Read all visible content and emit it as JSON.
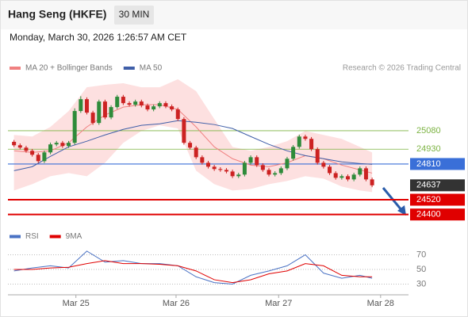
{
  "chart_data": {
    "type": "candlestick",
    "title": "Hang Seng (HKFE)",
    "interval": "30 MIN",
    "subtitle": "Monday, March 30, 2026 1:26:57 AM CET",
    "source": "Research © 2026 Trading Central",
    "xlim": [
      -1,
      65
    ],
    "xticks": [
      {
        "value": 10.2,
        "label": "Mar 25"
      },
      {
        "value": 26.7,
        "label": "Mar 26"
      },
      {
        "value": 43.6,
        "label": "Mar 27"
      },
      {
        "value": 60.4,
        "label": "Mar 28"
      }
    ],
    "ylim": [
      24340,
      25530
    ],
    "up_color": "#2e8b3a",
    "down_color": "#cc2222",
    "open": [
      24990,
      24962,
      24943,
      24917,
      24885,
      24833,
      24904,
      24969,
      24982,
      24956,
      24982,
      25240,
      25336,
      25227,
      25143,
      25317,
      25188,
      25272,
      25356,
      25304,
      25291,
      25317,
      25285,
      25253,
      25278,
      25304,
      25278,
      25253,
      25175,
      24982,
      24943,
      24865,
      24820,
      24788,
      24769,
      24762,
      24749,
      24711,
      24724,
      24820,
      24865,
      24801,
      24762,
      24724,
      24736,
      24775,
      24853,
      24949,
      25033,
      25014,
      24930,
      24820,
      24788,
      24736,
      24698,
      24711,
      24685,
      24724,
      24775,
      24685
    ],
    "high": [
      25005,
      24977,
      24958,
      24932,
      24900,
      24919,
      24984,
      24997,
      24997,
      24997,
      25262,
      25360,
      25351,
      25242,
      25332,
      25332,
      25287,
      25371,
      25371,
      25319,
      25332,
      25332,
      25300,
      25293,
      25319,
      25319,
      25293,
      25268,
      25190,
      24997,
      24958,
      24880,
      24835,
      24803,
      24784,
      24777,
      24764,
      24739,
      24835,
      24880,
      24880,
      24816,
      24777,
      24751,
      24790,
      24868,
      24964,
      25048,
      25048,
      25029,
      24945,
      24835,
      24803,
      24751,
      24726,
      24726,
      24739,
      24790,
      24790,
      24700
    ],
    "low": [
      24947,
      24928,
      24902,
      24870,
      24818,
      24818,
      24889,
      24954,
      24941,
      24941,
      24967,
      25225,
      25212,
      25128,
      25128,
      25173,
      25173,
      25257,
      25289,
      25276,
      25276,
      25270,
      25238,
      25238,
      25263,
      25263,
      25238,
      25160,
      24967,
      24928,
      24850,
      24805,
      24773,
      24754,
      24747,
      24734,
      24696,
      24696,
      24709,
      24805,
      24786,
      24747,
      24709,
      24709,
      24721,
      24760,
      24838,
      24934,
      24999,
      24915,
      24805,
      24773,
      24721,
      24683,
      24683,
      24670,
      24670,
      24709,
      24670,
      24622
    ],
    "close": [
      24962,
      24943,
      24917,
      24885,
      24833,
      24904,
      24969,
      24982,
      24956,
      24982,
      25240,
      25336,
      25227,
      25143,
      25317,
      25188,
      25272,
      25356,
      25304,
      25291,
      25317,
      25285,
      25253,
      25278,
      25304,
      25278,
      25253,
      25175,
      24982,
      24943,
      24865,
      24820,
      24788,
      24769,
      24762,
      24749,
      24711,
      24724,
      24820,
      24865,
      24801,
      24762,
      24724,
      24736,
      24775,
      24853,
      24949,
      25033,
      25014,
      24930,
      24820,
      24788,
      24736,
      24698,
      24711,
      24685,
      24724,
      24775,
      24685,
      24637
    ],
    "indicator_x": [
      0,
      3,
      6,
      9,
      12,
      15,
      18,
      21,
      24,
      27,
      30,
      33,
      36,
      39,
      42,
      45,
      48,
      51,
      54,
      57,
      59
    ],
    "ma_series": [
      {
        "name": "MA 20 + Bollinger Bands",
        "color": "#f08080",
        "band_color": "#fde0e0",
        "values": [
          24917,
          24904,
          24917,
          24982,
          25111,
          25207,
          25272,
          25291,
          25291,
          25253,
          25111,
          24949,
          24853,
          24801,
          24788,
          24820,
          24878,
          24853,
          24801,
          24762,
          24736
        ],
        "upper": [
          25046,
          25033,
          25111,
          25240,
          25433,
          25453,
          25466,
          25433,
          25433,
          25498,
          25401,
          25175,
          24949,
          24917,
          24949,
          24995,
          25078,
          25046,
          25014,
          24949,
          24904
        ],
        "lower": [
          24595,
          24646,
          24711,
          24736,
          24711,
          24820,
          24982,
          25078,
          25124,
          25098,
          24756,
          24646,
          24595,
          24607,
          24646,
          24672,
          24711,
          24691,
          24627,
          24595,
          24582
        ]
      },
      {
        "name": "MA 50",
        "color": "#3f5ea8",
        "values": [
          24756,
          24788,
          24872,
          24949,
          24995,
          25046,
          25091,
          25124,
          25136,
          25162,
          25149,
          25130,
          25098,
          25033,
          24969,
          24917,
          24878,
          24853,
          24827,
          24814,
          24807
        ]
      }
    ],
    "levels": [
      {
        "value": 25080,
        "color": "#7cb342",
        "style": "text"
      },
      {
        "value": 24930,
        "color": "#7cb342",
        "style": "text"
      },
      {
        "value": 24810,
        "color": "#3a6fd8",
        "style": "box"
      },
      {
        "value": 24520,
        "color": "#e00000",
        "style": "box"
      },
      {
        "value": 24400,
        "color": "#e00000",
        "style": "box"
      }
    ],
    "last_price": 24637,
    "last_price_color": "#333333",
    "rsi": {
      "ylim": [
        20,
        80
      ],
      "yticks": [
        70,
        50,
        30
      ],
      "series": [
        {
          "name": "RSI",
          "color": "#4a72c4",
          "values": [
            48,
            52,
            55,
            52,
            75,
            60,
            62,
            58,
            58,
            55,
            40,
            32,
            30,
            42,
            48,
            55,
            70,
            45,
            38,
            42,
            38
          ]
        },
        {
          "name": "9MA",
          "color": "#e00000",
          "values": [
            50,
            50,
            52,
            53,
            58,
            62,
            58,
            58,
            57,
            55,
            48,
            36,
            32,
            36,
            44,
            48,
            58,
            55,
            42,
            40,
            40
          ]
        }
      ]
    }
  }
}
